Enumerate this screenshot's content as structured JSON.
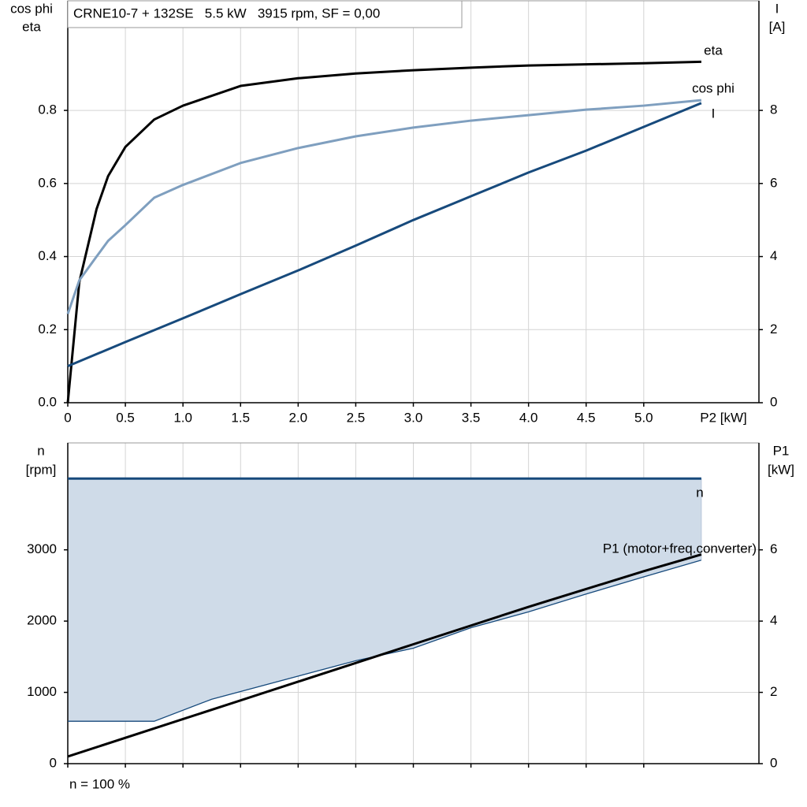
{
  "chart_data": [
    {
      "type": "line",
      "title": "CRNE10-7 + 132SE   5.5 kW   3915 rpm, SF = 0,00",
      "y_label": [
        "cos phi",
        "eta"
      ],
      "y2_label": [
        "I",
        "[A]"
      ],
      "x_label": "P2 [kW]",
      "xlim": [
        0,
        6
      ],
      "xticks": [
        0,
        0.5,
        {
          "value": 1,
          "label": "1.0"
        },
        1.5,
        {
          "value": 2,
          "label": "2.0"
        },
        2.5,
        {
          "value": 3,
          "label": "3.0"
        },
        3.5,
        {
          "value": 4,
          "label": "4.0"
        },
        4.5,
        {
          "value": 5,
          "label": "5.0"
        }
      ],
      "ylim": [
        0,
        1.1
      ],
      "yticks": [
        {
          "value": 0,
          "label": "0.0"
        },
        0.2,
        0.4,
        0.6,
        0.8
      ],
      "y2lim": [
        0,
        11
      ],
      "y2ticks": [
        0,
        2,
        4,
        6,
        8
      ],
      "grid": true,
      "series": [
        {
          "name": "eta",
          "color": "#000000",
          "x": [
            0,
            0.1,
            0.25,
            0.35,
            0.5,
            0.75,
            1,
            1.5,
            2,
            2.5,
            3,
            3.5,
            4,
            4.5,
            5,
            5.5
          ],
          "values": [
            0,
            0.33,
            0.53,
            0.62,
            0.7,
            0.775,
            0.813,
            0.867,
            0.888,
            0.901,
            0.91,
            0.917,
            0.923,
            0.926,
            0.929,
            0.933
          ]
        },
        {
          "name": "cos phi",
          "color": "#7f9fbf",
          "x": [
            0,
            0.1,
            0.25,
            0.35,
            0.5,
            0.75,
            1,
            1.5,
            2,
            2.5,
            3,
            3.5,
            4,
            4.5,
            5,
            5.5
          ],
          "values": [
            0.243,
            0.335,
            0.4,
            0.443,
            0.486,
            0.561,
            0.596,
            0.656,
            0.697,
            0.729,
            0.753,
            0.772,
            0.787,
            0.802,
            0.813,
            0.828
          ]
        },
        {
          "name": "I",
          "color": "#174a7c",
          "axis": "y2",
          "x": [
            0,
            0.5,
            1,
            1.5,
            2,
            2.5,
            3,
            3.5,
            4,
            4.5,
            5,
            5.5
          ],
          "values": [
            1.0,
            1.66,
            2.31,
            2.97,
            3.62,
            4.3,
            5.0,
            5.65,
            6.3,
            6.9,
            7.55,
            8.2
          ]
        }
      ]
    },
    {
      "type": "area",
      "y_label": [
        "n",
        "[rpm]"
      ],
      "y2_label": [
        "P1",
        "[kW]"
      ],
      "note": "n = 100 %",
      "xlim": [
        0,
        6
      ],
      "ylim": [
        0,
        4500
      ],
      "yticks": [
        0,
        1000,
        2000,
        3000
      ],
      "y2lim": [
        0,
        9
      ],
      "y2ticks": [
        0,
        2,
        4,
        6
      ],
      "grid": true,
      "band": {
        "color": "#cfdbe8",
        "x": [
          0,
          0.75,
          1.25,
          2.5,
          3.0,
          3.5,
          4.0,
          4.5,
          5.0,
          5.5
        ],
        "lower": [
          595,
          595,
          904,
          1444,
          1620,
          1907,
          2130,
          2380,
          2620,
          2856
        ]
      },
      "series": [
        {
          "name": "n",
          "color": "#174a7c",
          "x": [
            0,
            5.5
          ],
          "values": [
            4000,
            4000
          ]
        },
        {
          "name": "P1 (motor+freq.converter)",
          "color": "#000000",
          "axis": "y2",
          "x": [
            0,
            1,
            2,
            3,
            4,
            5,
            5.5
          ],
          "values": [
            0.2,
            1.25,
            2.3,
            3.35,
            4.4,
            5.4,
            5.87
          ]
        }
      ]
    }
  ]
}
